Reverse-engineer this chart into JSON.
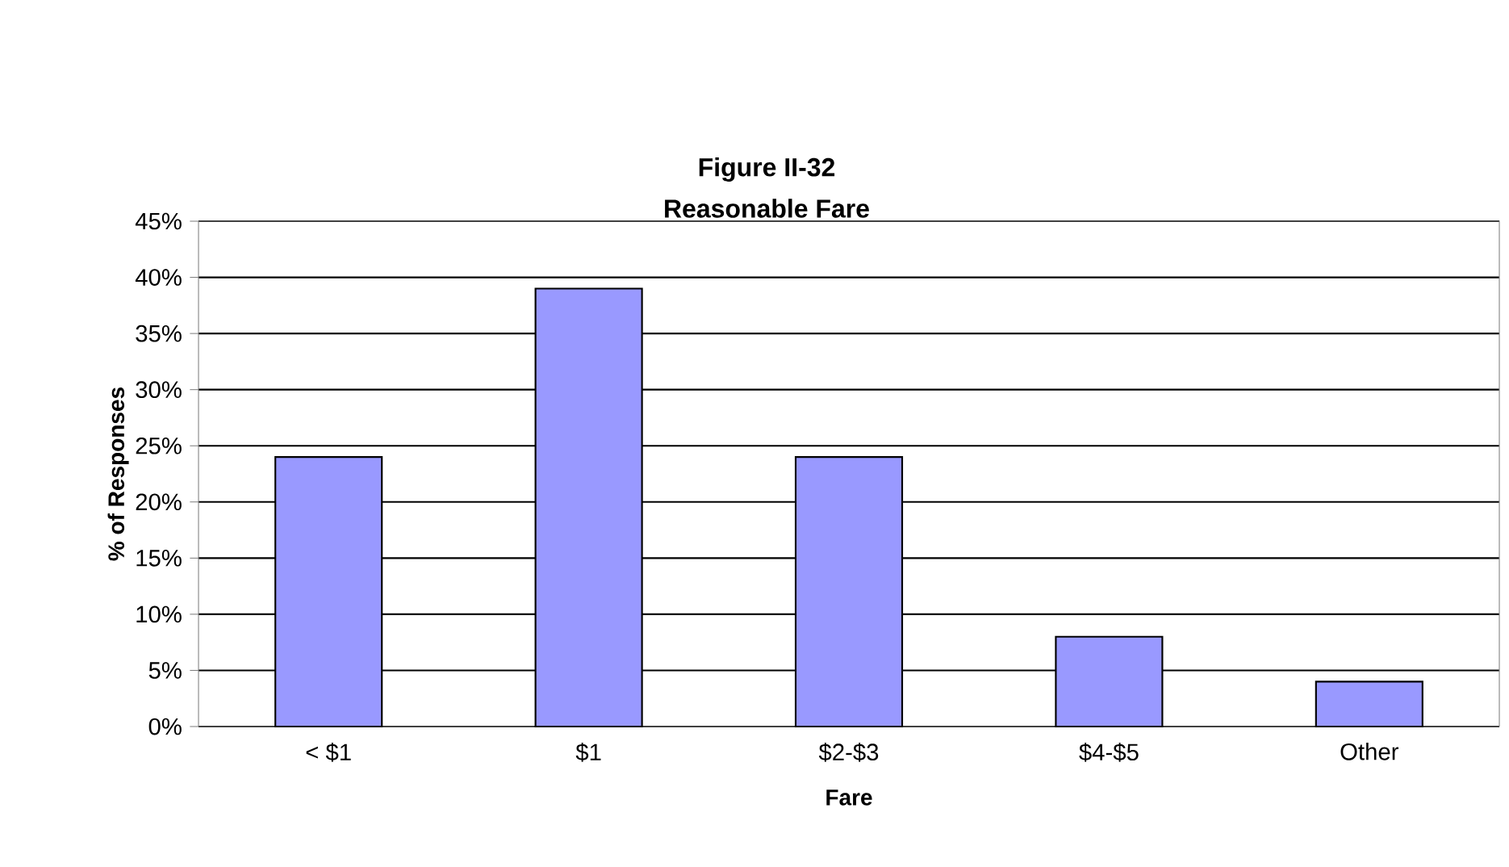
{
  "chart_data": {
    "type": "bar",
    "title": "Figure II-32",
    "subtitle": "Reasonable Fare",
    "xlabel": "Fare",
    "ylabel": "% of Responses",
    "categories": [
      "< $1",
      "$1",
      "$2-$3",
      "$4-$5",
      "Other"
    ],
    "values": [
      24,
      39,
      24,
      8,
      4
    ],
    "color": "#9999ff",
    "ylim": [
      0,
      45
    ],
    "yticks": [
      {
        "value": 0,
        "label": "0%"
      },
      {
        "value": 5,
        "label": "5%"
      },
      {
        "value": 10,
        "label": "10%"
      },
      {
        "value": 15,
        "label": "15%"
      },
      {
        "value": 20,
        "label": "20%"
      },
      {
        "value": 25,
        "label": "25%"
      },
      {
        "value": 30,
        "label": "30%"
      },
      {
        "value": 35,
        "label": "35%"
      },
      {
        "value": 40,
        "label": "40%"
      },
      {
        "value": 45,
        "label": "45%"
      }
    ],
    "grid": "y"
  }
}
